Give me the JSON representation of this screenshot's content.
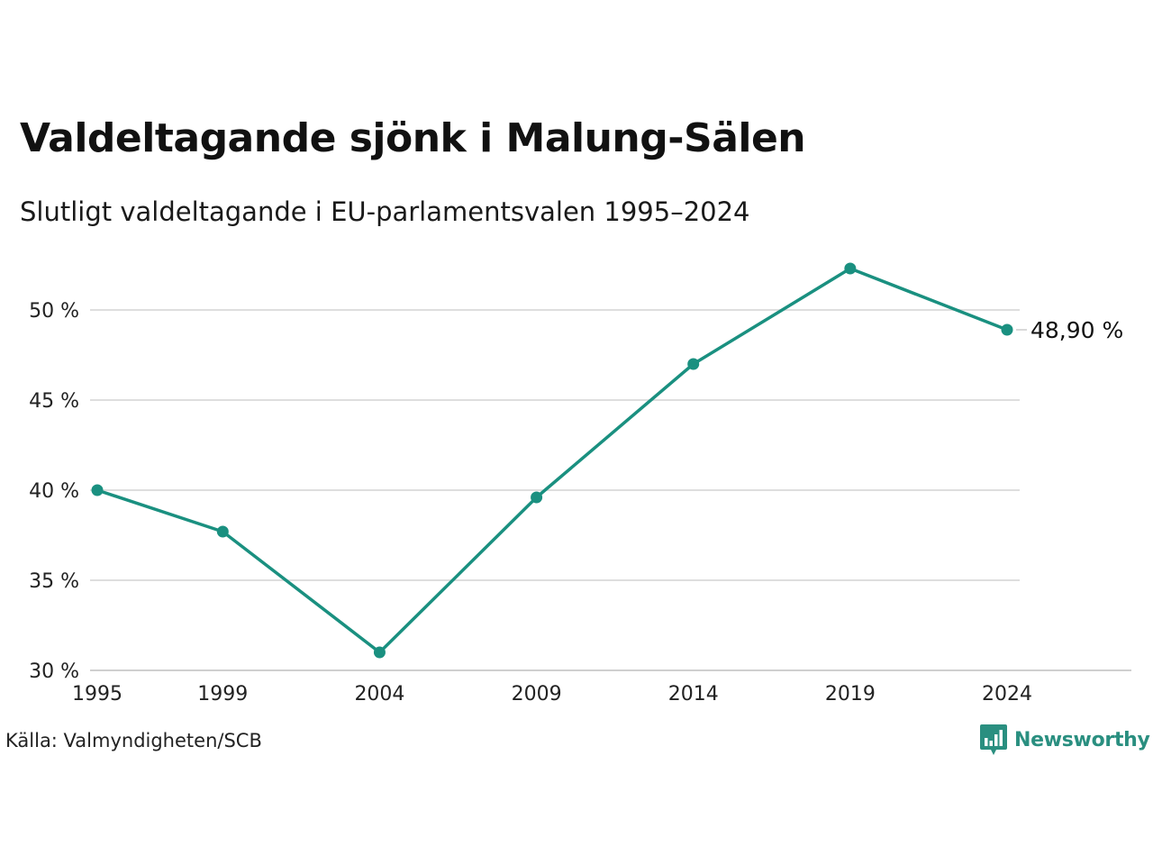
{
  "title": "Valdeltagande sjönk i Malung-Sälen",
  "subtitle": "Slutligt valdeltagande i EU-parlamentsvalen 1995–2024",
  "source": "Källa: Valmyndigheten/SCB",
  "brand": {
    "name": "Newsworthy",
    "color": "#2a8f80",
    "icon": "bar-chart-speech-bubble-icon"
  },
  "chart_data": {
    "type": "line",
    "x": [
      1995,
      1999,
      2004,
      2009,
      2014,
      2019,
      2024
    ],
    "x_ticks": [
      "1995",
      "1999",
      "2004",
      "2009",
      "2014",
      "2019",
      "2024"
    ],
    "series": [
      {
        "values": [
          40.0,
          37.7,
          31.0,
          39.6,
          47.0,
          52.3,
          48.9
        ],
        "color": "#1a9080"
      }
    ],
    "end_label": "48,90 %",
    "y_ticks": [
      30,
      35,
      40,
      45,
      50
    ],
    "y_tick_labels": [
      "30 %",
      "35 %",
      "40 %",
      "45 %",
      "50 %"
    ],
    "ylim": [
      30,
      52.3
    ],
    "grid": true,
    "legend": "none"
  }
}
